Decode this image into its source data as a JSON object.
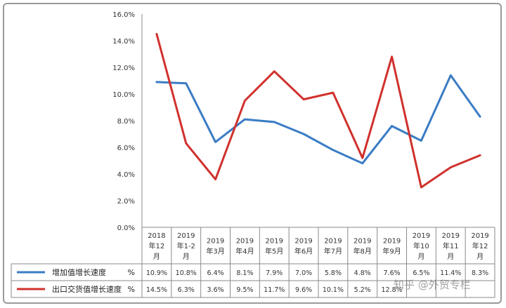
{
  "chart_data": {
    "type": "line",
    "categories": [
      "2018\n年12\n月",
      "2019\n年1-2\n月",
      "2019\n年3月",
      "2019\n年4月",
      "2019\n年5月",
      "2019\n年6月",
      "2019\n年7月",
      "2019\n年8月",
      "2019\n年9月",
      "2019\n年10\n月",
      "2019\n年11\n月",
      "2019\n年12\n月"
    ],
    "series": [
      {
        "name": "增加值增长速度",
        "unit": "%",
        "color": "#3a7cc4",
        "values": [
          10.9,
          10.8,
          6.4,
          8.1,
          7.9,
          7.0,
          5.8,
          4.8,
          7.6,
          6.5,
          11.4,
          8.3
        ],
        "labels": [
          "10.9%",
          "10.8%",
          "6.4%",
          "8.1%",
          "7.9%",
          "7.0%",
          "5.8%",
          "4.8%",
          "7.6%",
          "6.5%",
          "11.4%",
          "8.3%"
        ]
      },
      {
        "name": "出口交货值增长速度",
        "unit": "%",
        "color": "#d0312d",
        "values": [
          14.5,
          6.3,
          3.6,
          9.5,
          11.7,
          9.6,
          10.1,
          5.2,
          12.8,
          3.0,
          4.5,
          5.4
        ],
        "labels": [
          "14.5%",
          "6.3%",
          "3.6%",
          "9.5%",
          "11.7%",
          "9.6%",
          "10.1%",
          "5.2%",
          "12.8%",
          "",
          "",
          ""
        ]
      }
    ],
    "yticks": [
      "0.0%",
      "2.0%",
      "4.0%",
      "6.0%",
      "8.0%",
      "10.0%",
      "12.0%",
      "14.0%",
      "16.0%"
    ],
    "ylim": [
      0,
      16
    ],
    "grid": false,
    "legend": "data-table-below"
  },
  "watermark": "知乎 @外贸专栏"
}
